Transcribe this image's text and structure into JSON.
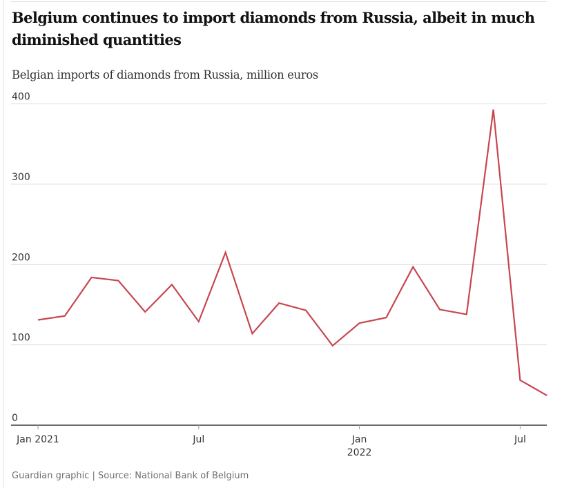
{
  "chart_data": {
    "type": "line",
    "title": "Belgium continues to import diamonds from Russia, albeit in much diminished quantities",
    "subtitle": "Belgian imports of diamonds from Russia, million euros",
    "xlabel": "",
    "ylabel": "million euros",
    "ylim": [
      0,
      400
    ],
    "yticks": [
      0,
      100,
      200,
      300,
      400
    ],
    "ytick_labels": [
      "0",
      "100",
      "200",
      "300",
      "400"
    ],
    "x_month_range": [
      "2021-01",
      "2022-08"
    ],
    "xticks": [
      {
        "month_index": 0,
        "label": "Jan 2021",
        "label2": ""
      },
      {
        "month_index": 6,
        "label": "Jul",
        "label2": ""
      },
      {
        "month_index": 12,
        "label": "Jan",
        "label2": "2022"
      },
      {
        "month_index": 18,
        "label": "Jul",
        "label2": ""
      }
    ],
    "grid": true,
    "series": [
      {
        "name": "Belgian imports of diamonds from Russia",
        "color": "#c8464f",
        "x": [
          "2021-01",
          "2021-02",
          "2021-03",
          "2021-04",
          "2021-05",
          "2021-06",
          "2021-07",
          "2021-08",
          "2021-09",
          "2021-10",
          "2021-11",
          "2021-12",
          "2022-01",
          "2022-02",
          "2022-03",
          "2022-04",
          "2022-05",
          "2022-06",
          "2022-07",
          "2022-08"
        ],
        "values": [
          131,
          136,
          184,
          180,
          141,
          175,
          129,
          215,
          114,
          152,
          143,
          99,
          127,
          134,
          197,
          144,
          138,
          393,
          56,
          37
        ]
      }
    ],
    "source": "Guardian graphic | Source: National Bank of Belgium"
  },
  "colors": {
    "line": "#c8464f",
    "grid": "#dcdcdc",
    "axis": "#121212",
    "text": "#333333"
  }
}
